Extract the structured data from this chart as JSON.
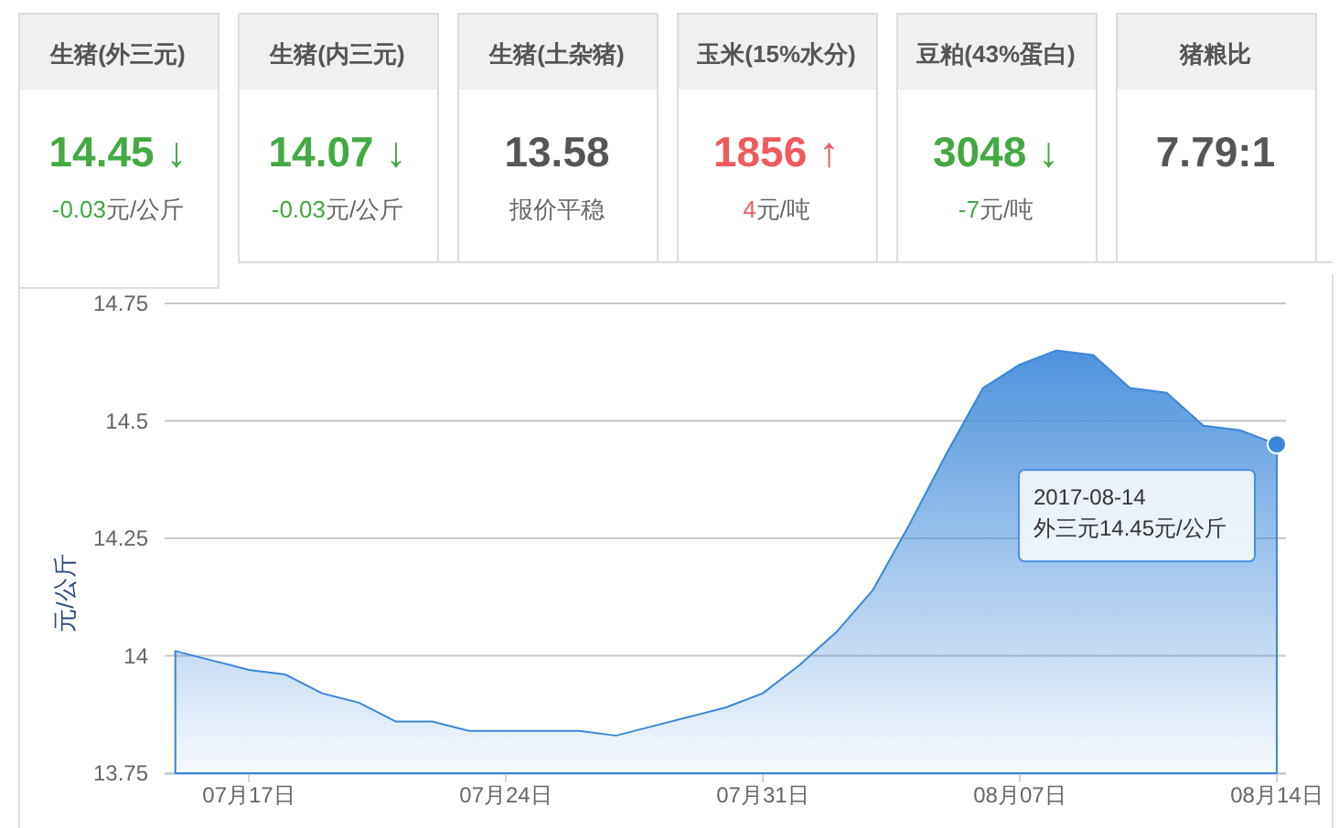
{
  "chart_data": [
    {
      "type": "other",
      "categories": [
        "生猪(外三元)",
        "生猪(内三元)",
        "生猪(土杂猪)",
        "玉米(15%水分)",
        "豆粕(43%蛋白)",
        "猪粮比"
      ],
      "value_labels": [
        "14.45 ↓",
        "14.07 ↓",
        "13.58",
        "1856 ↑",
        "3048 ↓",
        "7.79:1"
      ],
      "annotations": [
        "-0.03元/公斤",
        "-0.03元/公斤",
        "报价平稳",
        "4元/吨",
        "-7元/吨"
      ]
    },
    {
      "type": "area",
      "ylabel": "元/公斤",
      "x": [
        "2017-07-15",
        "2017-07-16",
        "2017-07-17",
        "2017-07-18",
        "2017-07-19",
        "2017-07-20",
        "2017-07-21",
        "2017-07-22",
        "2017-07-23",
        "2017-07-24",
        "2017-07-25",
        "2017-07-26",
        "2017-07-27",
        "2017-07-28",
        "2017-07-29",
        "2017-07-30",
        "2017-07-31",
        "2017-08-01",
        "2017-08-02",
        "2017-08-03",
        "2017-08-04",
        "2017-08-05",
        "2017-08-06",
        "2017-08-07",
        "2017-08-08",
        "2017-08-09",
        "2017-08-10",
        "2017-08-11",
        "2017-08-12",
        "2017-08-13",
        "2017-08-14"
      ],
      "series": [
        {
          "color": "#3a86d9",
          "values": [
            14.01,
            13.99,
            13.97,
            13.96,
            13.92,
            13.9,
            13.86,
            13.86,
            13.84,
            13.84,
            13.84,
            13.84,
            13.83,
            13.85,
            13.87,
            13.89,
            13.92,
            13.98,
            14.05,
            14.14,
            14.28,
            14.43,
            14.57,
            14.62,
            14.65,
            14.64,
            14.57,
            14.56,
            14.49,
            14.48,
            14.45
          ]
        }
      ],
      "xlim": [
        "2017-07-14T17:00",
        "2017-08-14T06:00"
      ],
      "xticks": [
        {
          "value": "2017-07-17",
          "label": "07月17日"
        },
        {
          "value": "2017-07-24",
          "label": "07月24日"
        },
        {
          "value": "2017-07-31",
          "label": "07月31日"
        },
        {
          "value": "2017-08-07",
          "label": "08月07日"
        },
        {
          "value": "2017-08-14",
          "label": "08月14日"
        }
      ],
      "ylim": [
        13.75,
        14.75
      ],
      "yticks": [
        13.75,
        14,
        14.25,
        14.5,
        14.75
      ],
      "grid": "y",
      "annotations": [
        {
          "text": "2017-08-14\n外三元14.45元/公斤",
          "x": "2017-08-14",
          "y": 14.45
        }
      ]
    }
  ]
}
